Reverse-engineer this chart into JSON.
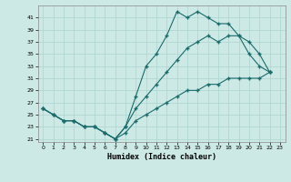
{
  "title": "",
  "xlabel": "Humidex (Indice chaleur)",
  "bg_color": "#cce9e5",
  "grid_color": "#b0d8d3",
  "line_color": "#1a6b6b",
  "xlim": [
    -0.5,
    23.5
  ],
  "ylim": [
    20.5,
    43
  ],
  "xticks": [
    0,
    1,
    2,
    3,
    4,
    5,
    6,
    7,
    8,
    9,
    10,
    11,
    12,
    13,
    14,
    15,
    16,
    17,
    18,
    19,
    20,
    21,
    22,
    23
  ],
  "yticks": [
    21,
    23,
    25,
    27,
    29,
    31,
    33,
    35,
    37,
    39,
    41
  ],
  "line1_x": [
    0,
    1,
    2,
    3,
    4,
    5,
    6,
    7,
    8,
    9,
    10,
    11,
    12,
    13,
    14,
    15,
    16,
    17,
    18,
    19,
    20,
    21,
    22
  ],
  "line1_y": [
    26,
    25,
    24,
    24,
    23,
    23,
    22,
    21,
    23,
    28,
    33,
    35,
    38,
    42,
    41,
    42,
    41,
    40,
    40,
    38,
    35,
    33,
    32
  ],
  "line2_x": [
    0,
    1,
    2,
    3,
    4,
    5,
    6,
    7,
    8,
    9,
    10,
    11,
    12,
    13,
    14,
    15,
    16,
    17,
    18,
    19,
    20,
    21,
    22
  ],
  "line2_y": [
    26,
    25,
    24,
    24,
    23,
    23,
    22,
    21,
    23,
    26,
    28,
    30,
    32,
    34,
    36,
    37,
    38,
    37,
    38,
    38,
    37,
    35,
    32
  ],
  "line3_x": [
    0,
    1,
    2,
    3,
    4,
    5,
    6,
    7,
    8,
    9,
    10,
    11,
    12,
    13,
    14,
    15,
    16,
    17,
    18,
    19,
    20,
    21,
    22
  ],
  "line3_y": [
    26,
    25,
    24,
    24,
    23,
    23,
    22,
    21,
    22,
    24,
    25,
    26,
    27,
    28,
    29,
    29,
    30,
    30,
    31,
    31,
    31,
    31,
    32
  ]
}
